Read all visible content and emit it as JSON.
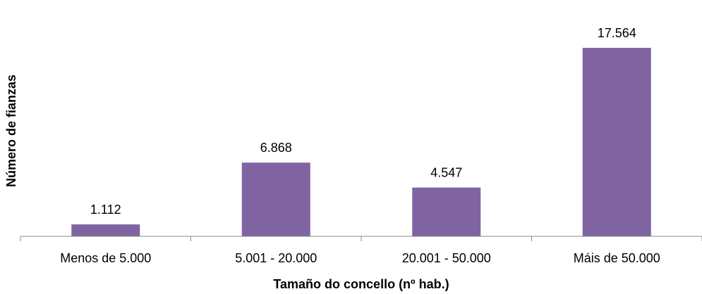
{
  "chart_data": {
    "type": "bar",
    "categories": [
      "Menos de 5.000",
      "5.001 - 20.000",
      "20.001 - 50.000",
      "Máis de 50.000"
    ],
    "values": [
      1112,
      6868,
      4547,
      17564
    ],
    "value_labels": [
      "1.112",
      "6.868",
      "4.547",
      "17.564"
    ],
    "xlabel": "Tamaño do concello (nº hab.)",
    "ylabel": "Número de fianzas",
    "ylim": [
      0,
      18000
    ],
    "grid": false,
    "bar_color": "#8064A2"
  }
}
